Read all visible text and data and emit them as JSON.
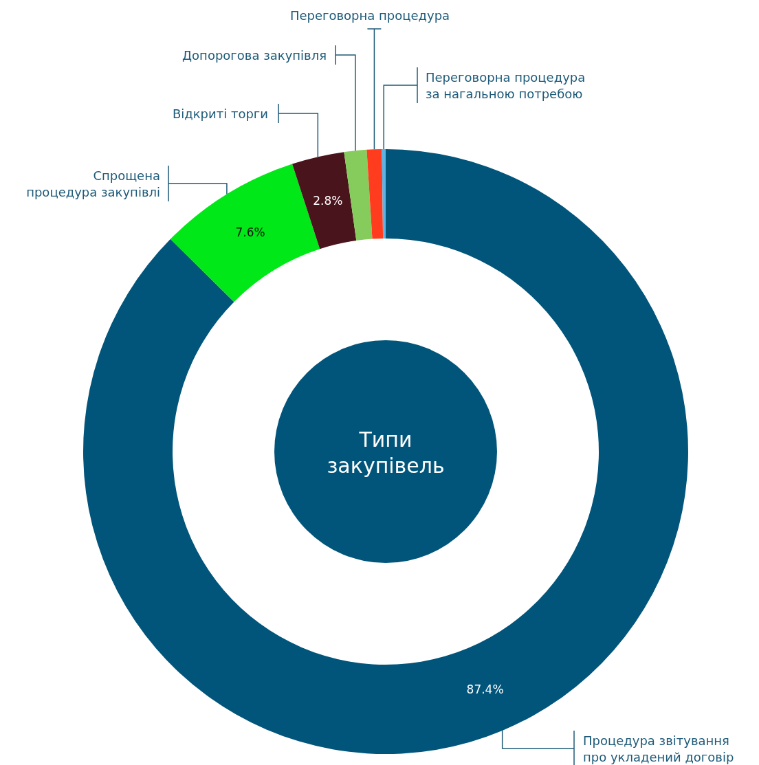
{
  "chart_data": {
    "type": "donut",
    "title": "Типи закупівель",
    "categories": [
      "Процедура звітування про укладений договір",
      "Спрощена процедура закупівлі",
      "Відкриті торги",
      "Допорогова закупівля",
      "Переговорна процедура",
      "Переговорна процедура за нагальною потребою"
    ],
    "values": [
      87.4,
      7.6,
      2.8,
      1.2,
      0.8,
      0.2
    ],
    "colors": [
      "#02557a",
      "#00e817",
      "#4a141c",
      "#86cc5c",
      "#ff3c1e",
      "#5ab4e6"
    ],
    "value_labels": [
      "87.4%",
      "7.6%",
      "2.8%",
      null,
      null,
      null
    ]
  }
}
